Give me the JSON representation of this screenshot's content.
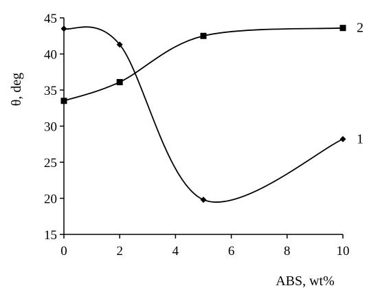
{
  "chart_data": {
    "type": "line",
    "title": "",
    "xlabel": "ABS, wt%",
    "ylabel": "θ, deg",
    "xlim": [
      0,
      10
    ],
    "ylim": [
      15,
      45
    ],
    "x_ticks": [
      0,
      2,
      4,
      6,
      8,
      10
    ],
    "y_ticks": [
      15,
      20,
      25,
      30,
      35,
      40,
      45
    ],
    "grid": false,
    "legend": "none",
    "series": [
      {
        "name": "1",
        "marker": "diamond",
        "color": "#000000",
        "x": [
          0,
          2,
          5,
          10
        ],
        "y": [
          43.5,
          41.3,
          19.8,
          28.2
        ]
      },
      {
        "name": "2",
        "marker": "square",
        "color": "#000000",
        "x": [
          0,
          2,
          5,
          10
        ],
        "y": [
          33.5,
          36.1,
          42.5,
          43.6
        ]
      }
    ]
  }
}
